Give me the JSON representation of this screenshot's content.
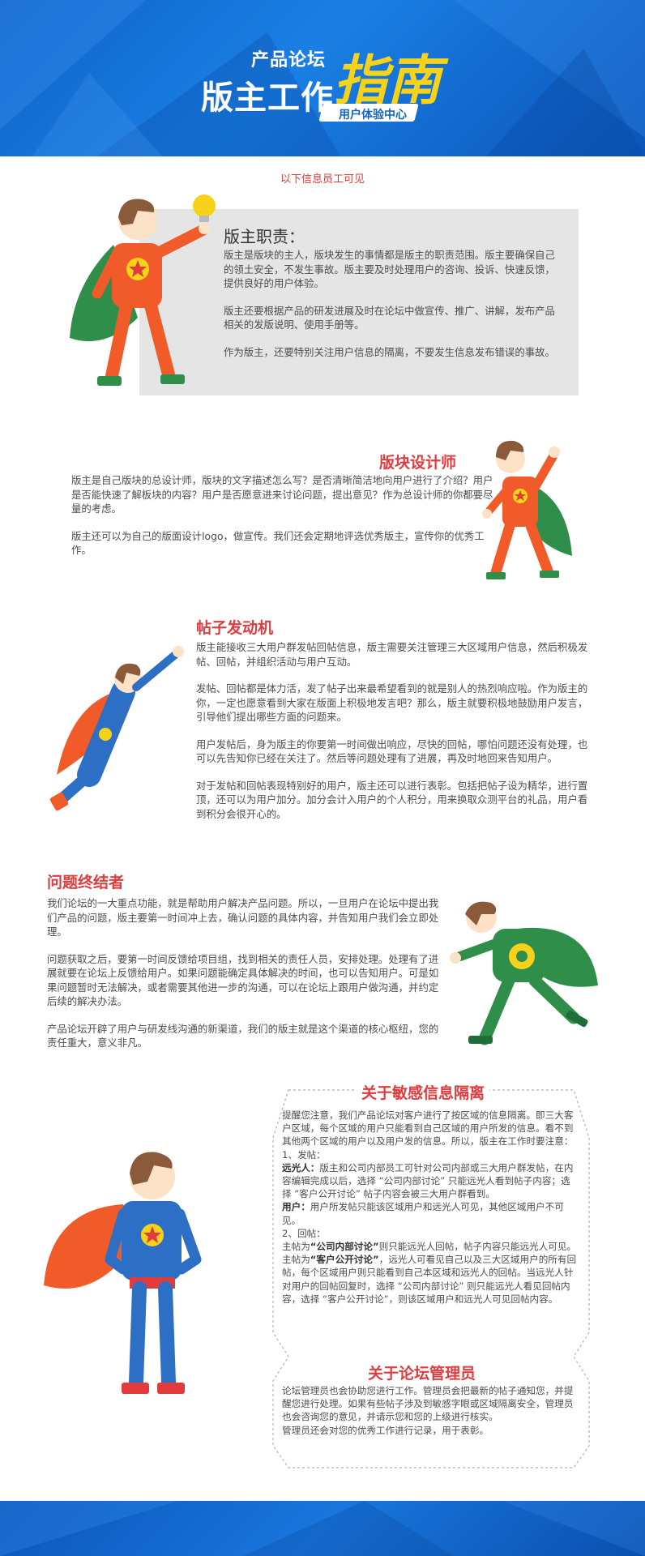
{
  "header": {
    "small_title": "产品论坛",
    "big_title": "版主工作",
    "yellow_title": "指南",
    "ribbon": "用户体验中心"
  },
  "notice": "以下信息员工可见",
  "duty": {
    "title": "版主职责：",
    "p1": "版主是版块的主人，版块发生的事情都是版主的职责范围。版主要确保自己的领土安全，不发生事故。版主要及时处理用户的咨询、投诉、快速反馈，提供良好的用户体验。",
    "p2": "版主还要根据产品的研发进展及时在论坛中做宣传、推广、讲解，发布产品相关的发版说明、使用手册等。",
    "p3": "作为版主，还要特别关注用户信息的隔离，不要发生信息发布错误的事故。"
  },
  "designer": {
    "title": "版块设计师",
    "p1": "版主是自己版块的总设计师，版块的文字描述怎么写？是否清晰简洁地向用户进行了介绍？用户是否能快速了解板块的内容？用户是否愿意进来讨论问题，提出意见？作为总设计师的你都要尽量的考虑。",
    "p2": "版主还可以为自己的版面设计logo，做宣传。我们还会定期地评选优秀版主，宣传你的优秀工作。"
  },
  "engine": {
    "title": "帖子发动机",
    "p1": "版主能接收三大用户群发帖回帖信息，版主需要关注管理三大区域用户信息，然后积极发帖、回帖，并组织活动与用户互动。",
    "p2": "发帖、回帖都是体力活，发了帖子出来最希望看到的就是别人的热烈响应啦。作为版主的你，一定也愿意看到大家在版面上积极地发言吧？那么，版主就要积极地鼓励用户发言，引导他们提出哪些方面的问题来。",
    "p3": "用户发帖后，身为版主的你要第一时间做出响应，尽快的回帖，哪怕问题还没有处理，也可以先告知你已经在关注了。然后等问题处理有了进展，再及时地回来告知用户。",
    "p4": "对于发帖和回帖表现特别好的用户，版主还可以进行表彰。包括把帖子设为精华，进行置顶，还可以为用户加分。加分会计入用户的个人积分，用来换取众测平台的礼品，用户看到积分会很开心的。"
  },
  "terminator": {
    "title": "问题终结者",
    "p1": "我们论坛的一大重点功能，就是帮助用户解决产品问题。所以，一旦用户在论坛中提出我们产品的问题，版主要第一时间冲上去，确认问题的具体内容，并告知用户我们会立即处理。",
    "p2": "问题获取之后，要第一时间反馈给项目组，找到相关的责任人员，安排处理。处理有了进展就要在论坛上反馈给用户。如果问题能确定具体解决的时间，也可以告知用户。可是如果问题暂时无法解决，或者需要其他进一步的沟通，可以在论坛上跟用户做沟通，并约定后续的解决办法。",
    "p3": "产品论坛开辟了用户与研发线沟通的新渠道，我们的版主就是这个渠道的核心枢纽，您的责任重大，意义非凡。"
  },
  "sensitive": {
    "title": "关于敏感信息隔离",
    "intro": "提醒您注意，我们产品论坛对客户进行了按区域的信息隔离。即三大客户区域，每个区域的用户只能看到自己区域的用户所发的信息。看不到其他两个区域的用户以及用户发的信息。所以，版主在工作时要注意：",
    "n1": "1、发帖：",
    "far_label": "远光人：",
    "far_text": "版主和公司内部员工可针对公司内部或三大用户群发帖，在内容编辑完成以后，选择 “公司内部讨论” 只能远光人看到帖子内容；选择 “客户公开讨论” 帖子内容会被三大用户群看到。",
    "user_label": "用户：",
    "user_text": "用户所发帖只能该区域用户和远光人可见，其他区域用户不可见。",
    "n2": "2、回帖：",
    "r1_pre": "主帖为",
    "r1_bold": "“公司内部讨论”",
    "r1_post": "则只能远光人回帖，帖子内容只能远光人可见。",
    "r2_pre": "主帖为",
    "r2_bold": "“客户公开讨论”",
    "r2_post": "，远光人可看见自己以及三大区域用户的所有回帖，每个区域用户则只能看到自己本区域和远光人的回帖。当远光人针对用户的回帖回复时，选择 “公司内部讨论” 则只能远光人看见回帖内容，选择 “客户公开讨论”，则该区域用户和远光人可见回帖内容。"
  },
  "admin": {
    "title": "关于论坛管理员",
    "p1": "论坛管理员也会协助您进行工作。管理员会把最新的帖子通知您，并提醒您进行处理。如果有些帖子涉及到敏感字眼或区域隔离安全，管理员也会咨询您的意见，并请示您和您的上级进行核实。",
    "p2": "管理员还会对您的优秀工作进行记录，用于表彰。"
  },
  "colors": {
    "header_blue": "#1372d8",
    "accent_red": "#e23b3e",
    "title_yellow": "#f6d21a",
    "hero_orange": "#f15a29",
    "hero_green": "#2f8f4a",
    "hero_blue": "#2c6fc4"
  },
  "icons": [
    "lightbulb-icon",
    "star-emblem-icon",
    "circle-emblem-icon"
  ]
}
